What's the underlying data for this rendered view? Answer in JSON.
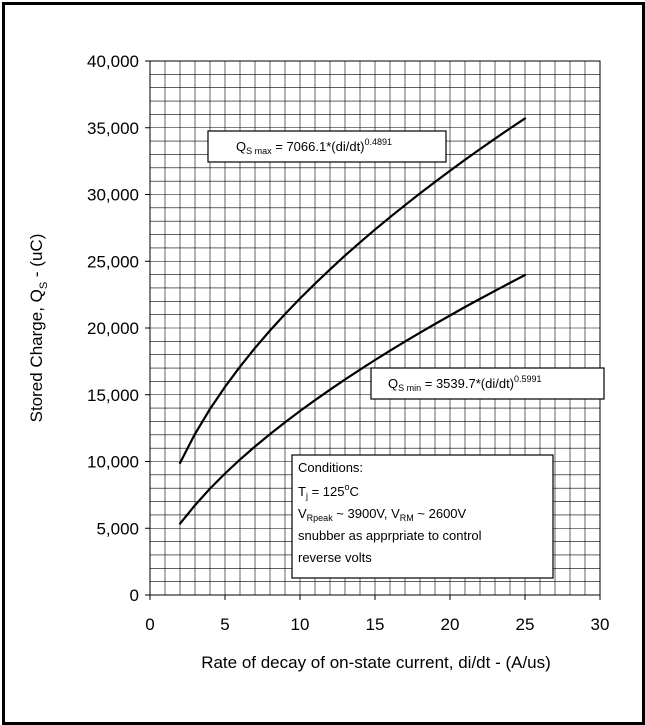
{
  "chart_data": {
    "type": "line",
    "xlabel": "Rate of decay of on-state current, di/dt - (A/us)",
    "ylabel_main": "Stored Charge, Q",
    "ylabel_sub": "S",
    "ylabel_unit": " - (uC)",
    "xlim": [
      0,
      30
    ],
    "ylim": [
      0,
      40000
    ],
    "x_ticks": [
      0,
      5,
      10,
      15,
      20,
      25,
      30
    ],
    "x_tick_labels": [
      "0",
      "5",
      "10",
      "15",
      "20",
      "25",
      "30"
    ],
    "y_ticks": [
      0,
      5000,
      10000,
      15000,
      20000,
      25000,
      30000,
      35000,
      40000
    ],
    "y_tick_labels": [
      "0",
      "5,000",
      "10,000",
      "15,000",
      "20,000",
      "25,000",
      "30,000",
      "35,000",
      "40,000"
    ],
    "grid": true,
    "series": [
      {
        "x": [
          2,
          3,
          4,
          5,
          6,
          7,
          8,
          9,
          10,
          11,
          12,
          13,
          14,
          15,
          16,
          17,
          18,
          19,
          20,
          21,
          22,
          23,
          24,
          25
        ],
        "values": [
          9890,
          12070,
          13930,
          15590,
          17100,
          18500,
          19810,
          21040,
          22210,
          23320,
          24390,
          25420,
          26410,
          27370,
          28300,
          29200,
          30080,
          30940,
          31780,
          32600,
          33400,
          34180,
          34950,
          35700
        ]
      },
      {
        "x": [
          2,
          3,
          4,
          5,
          6,
          7,
          8,
          9,
          10,
          11,
          12,
          13,
          14,
          15,
          16,
          17,
          18,
          19,
          20,
          21,
          22,
          23,
          24,
          25
        ],
        "values": [
          5340,
          6730,
          7970,
          9100,
          10140,
          11120,
          12050,
          12930,
          13780,
          14590,
          15380,
          16140,
          16880,
          17600,
          18300,
          18980,
          19650,
          20300,
          20940,
          21570,
          22180,
          22790,
          23380,
          23970
        ]
      }
    ],
    "annotations": {
      "qs_max": {
        "q": "Q",
        "sub": "S max",
        "formula": " = 7066.1*(di/dt)",
        "exp": "0.4891"
      },
      "qs_min": {
        "q": "Q",
        "sub": "S min",
        "formula": " = 3539.7*(di/dt)",
        "exp": "0.5991"
      },
      "conditions": {
        "title": "Conditions:",
        "tj_t": "T",
        "tj_sub": "j",
        "tj_val": " = 125",
        "tj_deg": "o",
        "tj_unit": "C",
        "v1": "V",
        "v1_sub": "Rpeak",
        "v1_val": " ~ 3900V, V",
        "v2_sub": "RM",
        "v2_val": " ~ 2600V",
        "line4": "snubber as apprpriate to control",
        "line5": "reverse volts"
      }
    },
    "colors": {
      "line": "#000000",
      "grid": "#000000",
      "background": "#ffffff"
    }
  }
}
